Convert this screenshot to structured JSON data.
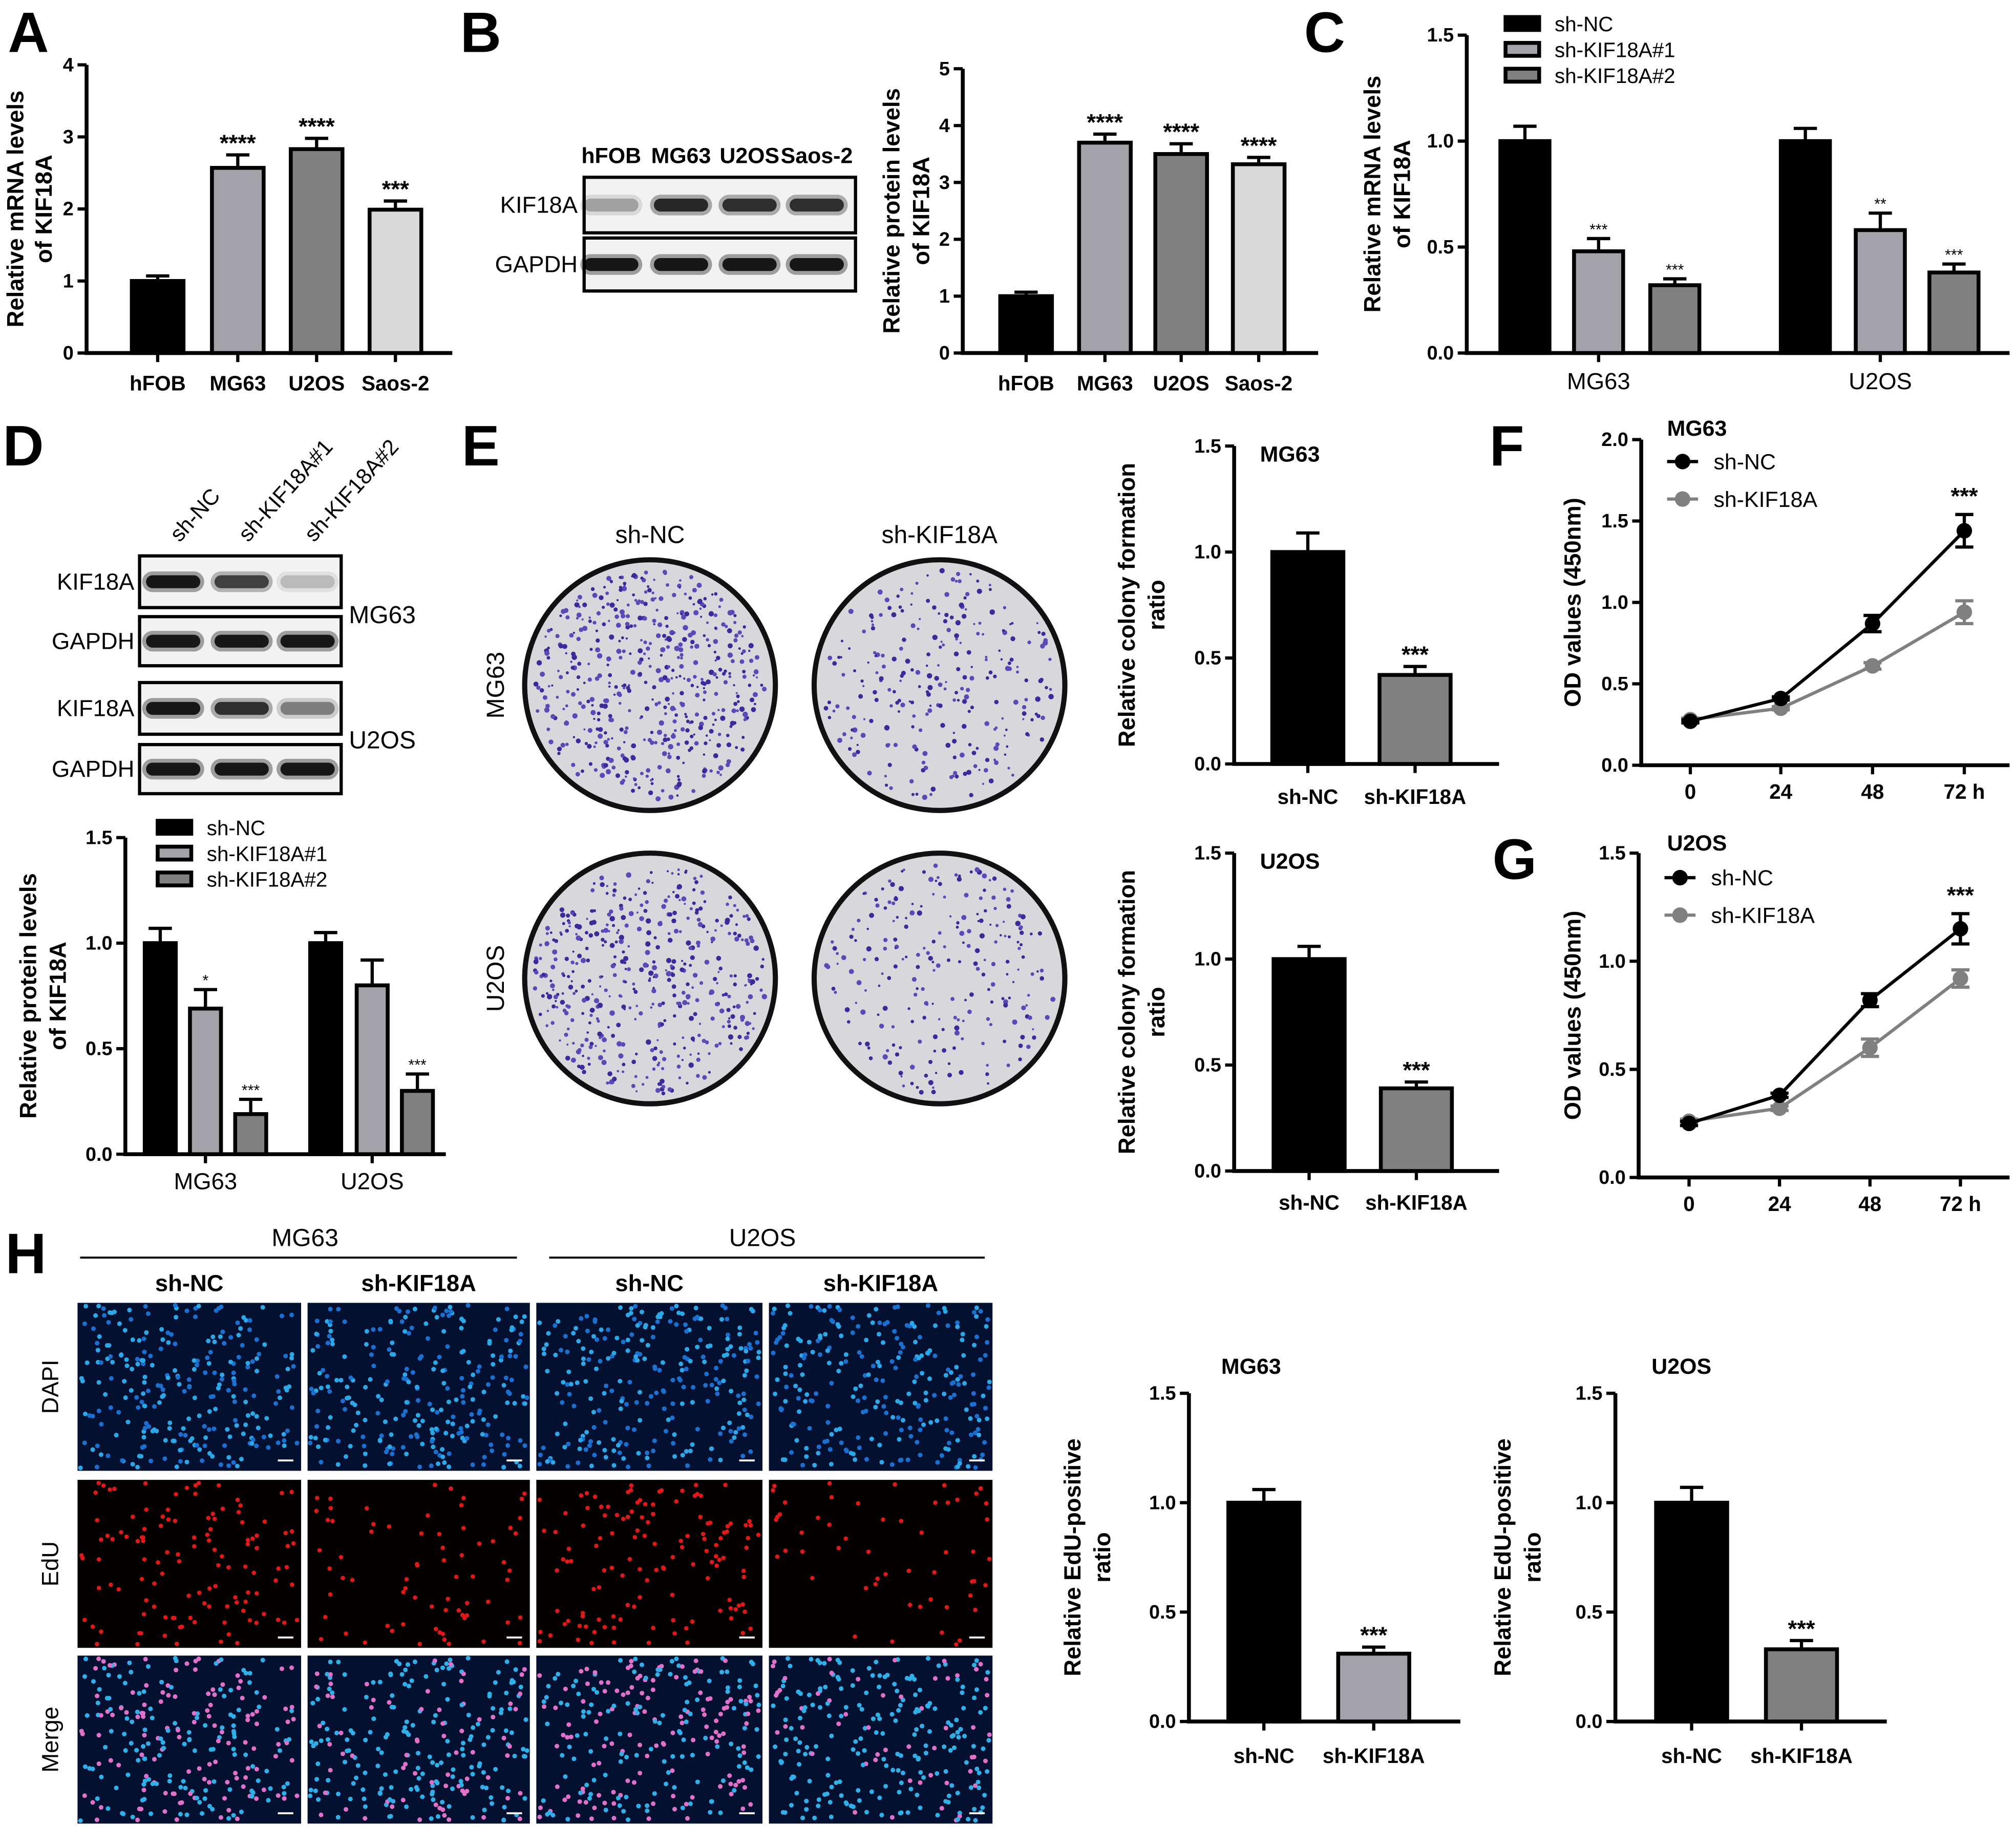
{
  "panel_letters": [
    "A",
    "B",
    "C",
    "D",
    "E",
    "F",
    "G",
    "H"
  ],
  "blot_B": {
    "lanes": [
      "hFOB",
      "MG63",
      "U2OS",
      "Saos-2"
    ],
    "rows": [
      "KIF18A",
      "GAPDH"
    ],
    "band_intensity": [
      [
        0.3,
        0.9,
        0.85,
        0.85
      ],
      [
        1,
        1,
        1,
        1
      ]
    ]
  },
  "blot_D": {
    "lanes": [
      "sh-NC",
      "sh-KIF18A#1",
      "sh-KIF18A#2"
    ],
    "rows": [
      "KIF18A",
      "GAPDH",
      "KIF18A",
      "GAPDH"
    ],
    "cell_lines": [
      "MG63",
      "U2OS"
    ],
    "band_intensity": [
      [
        1,
        0.75,
        0.2
      ],
      [
        1,
        1,
        1
      ],
      [
        1,
        0.85,
        0.45
      ],
      [
        1,
        1,
        1
      ]
    ]
  },
  "colony": {
    "columns": [
      "sh-NC",
      "sh-KIF18A"
    ],
    "rows": [
      "MG63",
      "U2OS"
    ]
  },
  "edu": {
    "cell_lines": [
      "MG63",
      "U2OS"
    ],
    "conditions": [
      "sh-NC",
      "sh-KIF18A",
      "sh-NC",
      "sh-KIF18A"
    ],
    "channels": [
      "DAPI",
      "EdU",
      "Merge"
    ]
  },
  "chart_data": [
    {
      "type": "bar",
      "panel": "A",
      "categories": [
        "hFOB",
        "MG63",
        "U2OS",
        "Saos-2"
      ],
      "values": [
        1.0,
        2.57,
        2.83,
        1.99
      ],
      "errors": [
        0.07,
        0.18,
        0.15,
        0.12
      ],
      "sig": [
        "",
        "****",
        "****",
        "***"
      ],
      "colors": [
        "#000000",
        "#a2a2a8",
        "#808080",
        "#d9d9d9"
      ],
      "ylabel": [
        "Relative mRNA levels",
        "of KIF18A"
      ],
      "ylim": [
        0,
        4
      ],
      "ticks": [
        "0",
        "1",
        "2",
        "3",
        "4"
      ]
    },
    {
      "type": "bar",
      "panel": "B",
      "categories": [
        "hFOB",
        "MG63",
        "U2OS",
        "Saos-2"
      ],
      "values": [
        1.0,
        3.7,
        3.5,
        3.32
      ],
      "errors": [
        0.07,
        0.15,
        0.18,
        0.12
      ],
      "sig": [
        "",
        "****",
        "****",
        "****"
      ],
      "colors": [
        "#000000",
        "#a2a2a8",
        "#808080",
        "#d9d9d9"
      ],
      "ylabel": [
        "Relative protein levels",
        "of KIF18A"
      ],
      "ylim": [
        0,
        5
      ],
      "ticks": [
        "0",
        "1",
        "2",
        "3",
        "4",
        "5"
      ]
    },
    {
      "type": "grouped_bar",
      "panel": "C",
      "categories": [
        "MG63",
        "U2OS"
      ],
      "series": [
        {
          "name": "sh-NC",
          "values": [
            1.0,
            1.0
          ],
          "errors": [
            0.07,
            0.06
          ],
          "sig": [
            "",
            ""
          ],
          "color": "#000000"
        },
        {
          "name": "sh-KIF18A#1",
          "values": [
            0.48,
            0.58
          ],
          "errors": [
            0.06,
            0.08
          ],
          "sig": [
            "***",
            "**"
          ],
          "color": "#a2a2a8"
        },
        {
          "name": "sh-KIF18A#2",
          "values": [
            0.32,
            0.38
          ],
          "errors": [
            0.03,
            0.04
          ],
          "sig": [
            "***",
            "***"
          ],
          "color": "#808080"
        }
      ],
      "ylabel": [
        "Relative mRNA levels",
        "of KIF18A"
      ],
      "ylim": [
        0,
        1.5
      ],
      "ticks": [
        "0.0",
        "0.5",
        "1.0",
        "1.5"
      ],
      "legend": "top-left"
    },
    {
      "type": "grouped_bar",
      "panel": "D",
      "categories": [
        "MG63",
        "U2OS"
      ],
      "series": [
        {
          "name": "sh-NC",
          "values": [
            1.0,
            1.0
          ],
          "errors": [
            0.07,
            0.05
          ],
          "sig": [
            "",
            ""
          ],
          "color": "#000000"
        },
        {
          "name": "sh-KIF18A#1",
          "values": [
            0.69,
            0.8
          ],
          "errors": [
            0.09,
            0.12
          ],
          "sig": [
            "*",
            ""
          ],
          "color": "#a2a2a8"
        },
        {
          "name": "sh-KIF18A#2",
          "values": [
            0.19,
            0.3
          ],
          "errors": [
            0.07,
            0.08
          ],
          "sig": [
            "***",
            "***"
          ],
          "color": "#808080"
        }
      ],
      "ylabel": [
        "Relative protein levels",
        "of KIF18A"
      ],
      "ylim": [
        0,
        1.5
      ],
      "ticks": [
        "0.0",
        "0.5",
        "1.0",
        "1.5"
      ],
      "legend": "top-left"
    },
    {
      "type": "bar",
      "panel": "E",
      "title": "MG63",
      "categories": [
        "sh-NC",
        "sh-KIF18A"
      ],
      "values": [
        1.0,
        0.42
      ],
      "errors": [
        0.09,
        0.04
      ],
      "sig": [
        "",
        "***"
      ],
      "colors": [
        "#000000",
        "#808080"
      ],
      "ylabel": [
        "Relative colony formation",
        "ratio"
      ],
      "ylim": [
        0,
        1.5
      ],
      "ticks": [
        "0.0",
        "0.5",
        "1.0",
        "1.5"
      ]
    },
    {
      "type": "bar",
      "panel": "E",
      "title": "U2OS",
      "categories": [
        "sh-NC",
        "sh-KIF18A"
      ],
      "values": [
        1.0,
        0.39
      ],
      "errors": [
        0.06,
        0.03
      ],
      "sig": [
        "",
        "***"
      ],
      "colors": [
        "#000000",
        "#808080"
      ],
      "ylabel": [
        "Relative colony formation",
        "ratio"
      ],
      "ylim": [
        0,
        1.5
      ],
      "ticks": [
        "0.0",
        "0.5",
        "1.0",
        "1.5"
      ]
    },
    {
      "type": "line",
      "panel": "F",
      "title": "MG63",
      "x": [
        "0",
        "24",
        "48",
        "72 h"
      ],
      "series": [
        {
          "name": "sh-NC",
          "values": [
            0.27,
            0.41,
            0.87,
            1.44
          ],
          "errors": [
            0.01,
            0.01,
            0.05,
            0.1
          ],
          "color": "#000000"
        },
        {
          "name": "sh-KIF18A",
          "values": [
            0.28,
            0.35,
            0.61,
            0.94
          ],
          "errors": [
            0.01,
            0.01,
            0.02,
            0.07
          ],
          "color": "#808080"
        }
      ],
      "sig": [
        "",
        "",
        "",
        "***"
      ],
      "ylabel": [
        "OD values (450nm)"
      ],
      "ylim": [
        0,
        2
      ],
      "ticks": [
        "0.0",
        "0.5",
        "1.0",
        "1.5",
        "2.0"
      ],
      "legend": "top-left"
    },
    {
      "type": "line",
      "panel": "G",
      "title": "U2OS",
      "x": [
        "0",
        "24",
        "48",
        "72 h"
      ],
      "series": [
        {
          "name": "sh-NC",
          "values": [
            0.25,
            0.38,
            0.82,
            1.15
          ],
          "errors": [
            0.01,
            0.01,
            0.03,
            0.07
          ],
          "color": "#000000"
        },
        {
          "name": "sh-KIF18A",
          "values": [
            0.26,
            0.32,
            0.6,
            0.92
          ],
          "errors": [
            0.01,
            0.01,
            0.04,
            0.04
          ],
          "color": "#808080"
        }
      ],
      "sig": [
        "",
        "",
        "",
        "***"
      ],
      "ylabel": [
        "OD values (450nm)"
      ],
      "ylim": [
        0,
        1.5
      ],
      "ticks": [
        "0.0",
        "0.5",
        "1.0",
        "1.5"
      ],
      "legend": "top-left"
    },
    {
      "type": "bar",
      "panel": "H",
      "title": "MG63",
      "categories": [
        "sh-NC",
        "sh-KIF18A"
      ],
      "values": [
        1.0,
        0.31
      ],
      "errors": [
        0.06,
        0.03
      ],
      "sig": [
        "",
        "***"
      ],
      "colors": [
        "#000000",
        "#a2a2a8"
      ],
      "ylabel": [
        "Relative EdU-positive",
        "ratio"
      ],
      "ylim": [
        0,
        1.5
      ],
      "ticks": [
        "0.0",
        "0.5",
        "1.0",
        "1.5"
      ]
    },
    {
      "type": "bar",
      "panel": "H",
      "title": "U2OS",
      "categories": [
        "sh-NC",
        "sh-KIF18A"
      ],
      "values": [
        1.0,
        0.33
      ],
      "errors": [
        0.07,
        0.04
      ],
      "sig": [
        "",
        "***"
      ],
      "colors": [
        "#000000",
        "#808080"
      ],
      "ylabel": [
        "Relative EdU-positive",
        "ratio"
      ],
      "ylim": [
        0,
        1.5
      ],
      "ticks": [
        "0.0",
        "0.5",
        "1.0",
        "1.5"
      ]
    }
  ]
}
